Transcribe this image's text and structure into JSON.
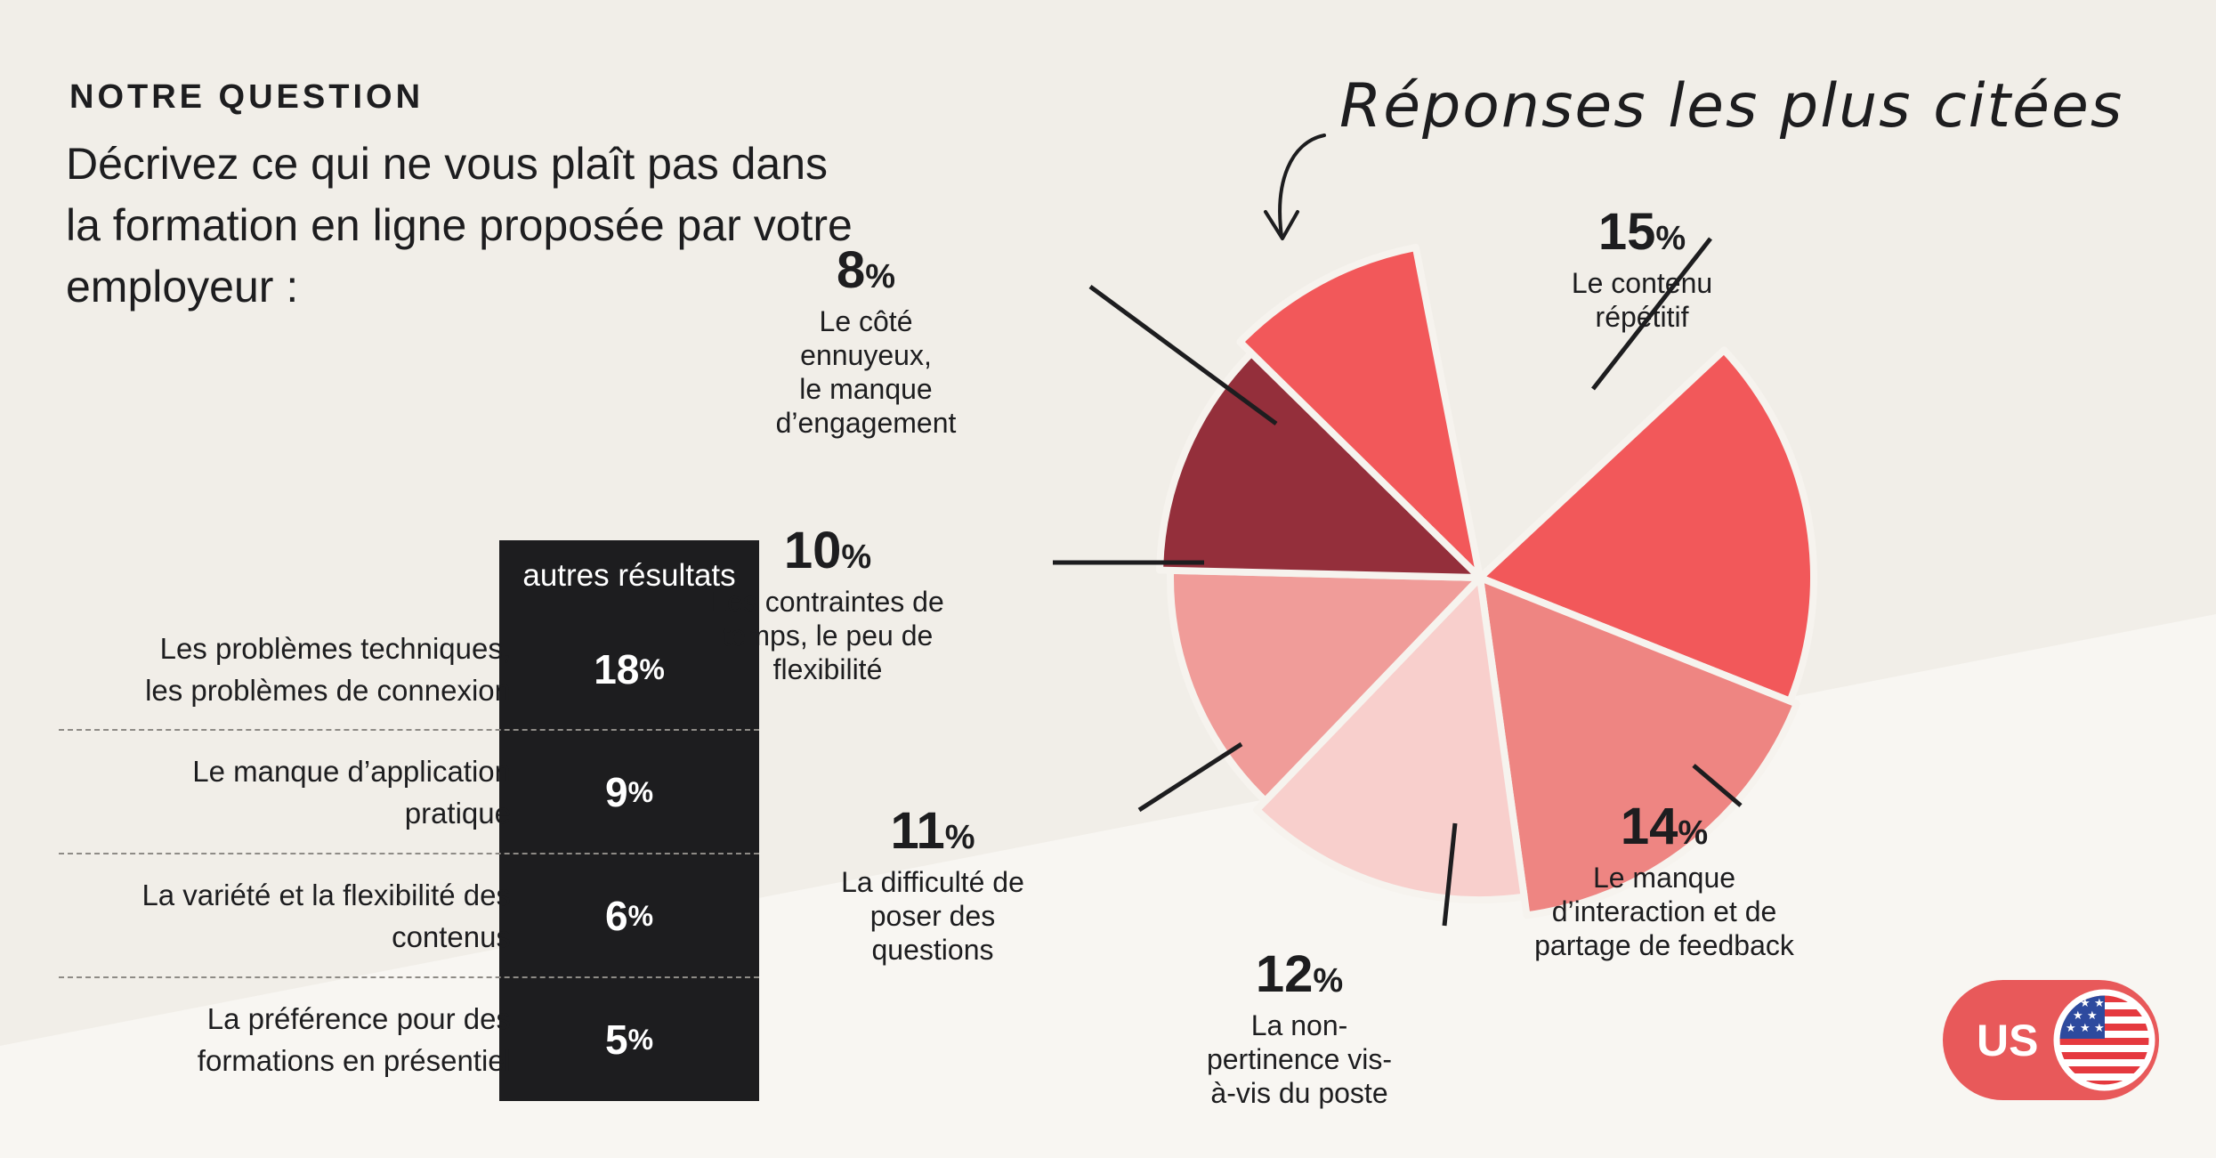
{
  "kicker": "NOTRE QUESTION",
  "question": "Décrivez ce qui ne vous plaît pas dans la formation en ligne proposée par votre employeur :",
  "table": {
    "header": "autres résultats",
    "rows": [
      {
        "label": "Les problèmes techniques,\nles problèmes de connexion",
        "value": "18",
        "unit": "%"
      },
      {
        "label": "Le manque d’application\npratique",
        "value": "9",
        "unit": "%"
      },
      {
        "label": "La variété et la flexibilité des\ncontenus",
        "value": "6",
        "unit": "%"
      },
      {
        "label": "La préférence pour des\nformations en présentiel",
        "value": "5",
        "unit": "%"
      }
    ]
  },
  "badge": {
    "code": "US",
    "icon": "us-flag-icon"
  },
  "chart_data": {
    "type": "pie",
    "title": "Réponses les plus citées",
    "unit": "%",
    "slices": [
      {
        "label": "Le contenu\nrépétitif",
        "value": 15,
        "color": "#f2585a"
      },
      {
        "label": "Le manque\nd’interaction et de\npartage de feedback",
        "value": 14,
        "color": "#ee8582"
      },
      {
        "label": "La non-\npertinence vis-\nà-vis du poste",
        "value": 12,
        "color": "#f8cfcc"
      },
      {
        "label": "La difficulté de\nposer des\nquestions",
        "value": 11,
        "color": "#f09c99"
      },
      {
        "label": "Les contraintes de\ntemps, le peu de\nflexibilité",
        "value": 10,
        "color": "#942f3b"
      },
      {
        "label": "Le côté\nennuyeux,\nle manque\nd’engagement",
        "value": 8,
        "color": "#f2585a"
      }
    ]
  }
}
